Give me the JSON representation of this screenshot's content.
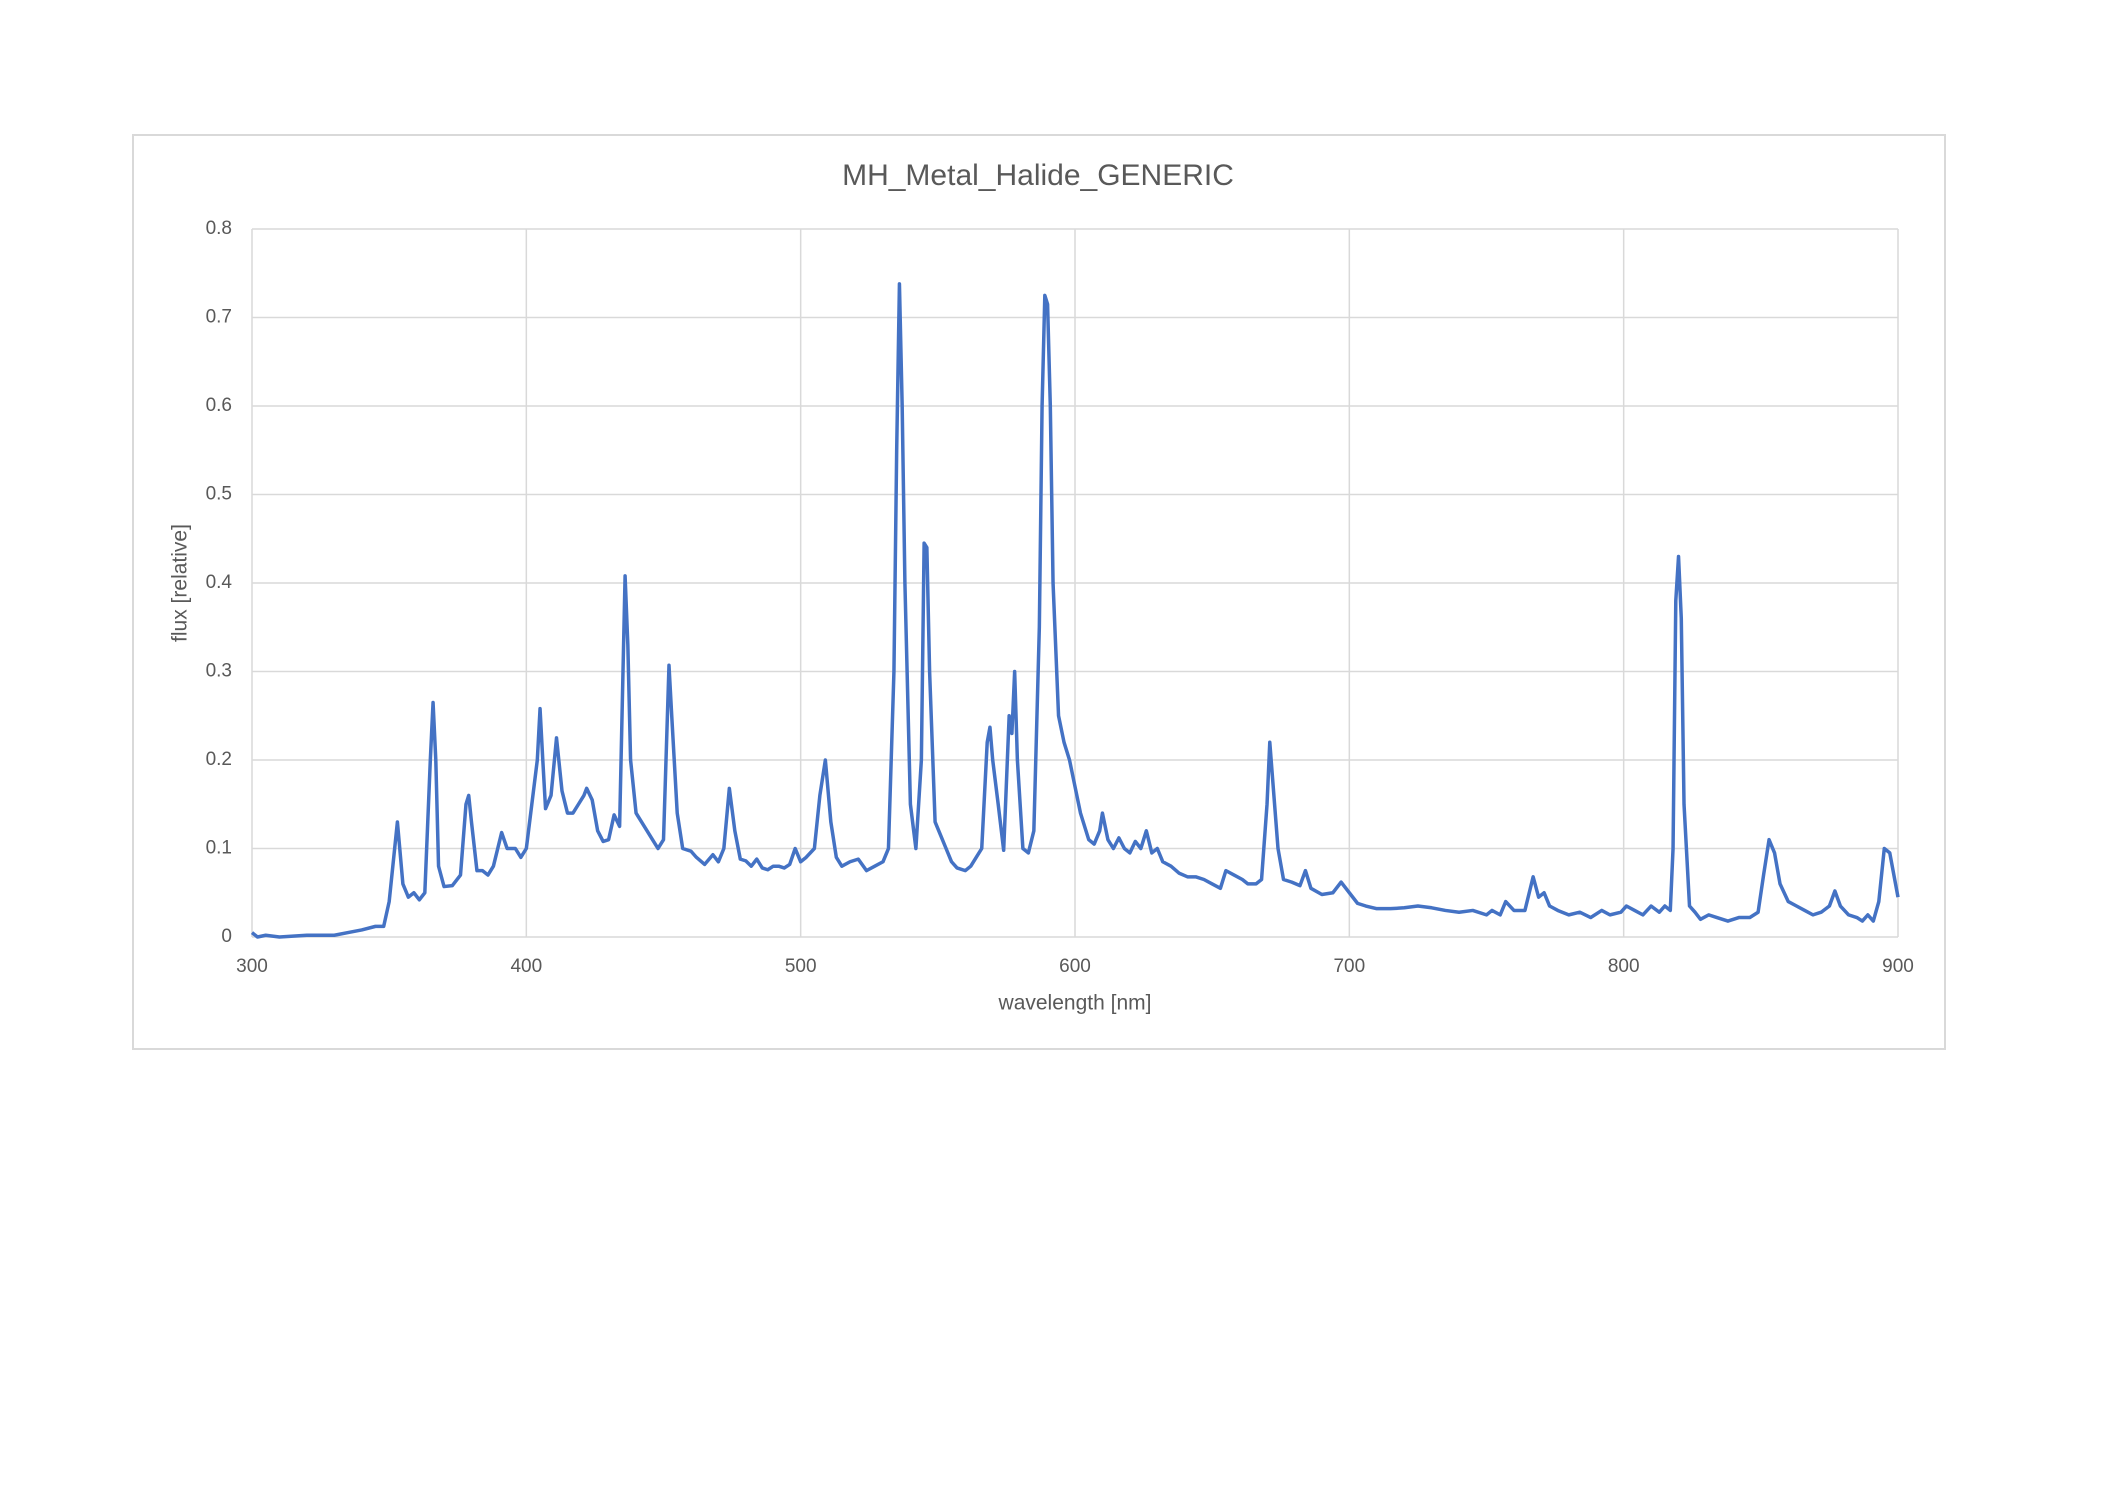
{
  "chart_data": {
    "type": "line",
    "title": "MH_Metal_Halide_GENERIC",
    "x_label": "wavelength [nm]",
    "y_label": "flux [relative]",
    "color": "#4472c4",
    "grid": true,
    "xlim": [
      300,
      900
    ],
    "xticks": [
      300,
      400,
      500,
      600,
      700,
      800,
      900
    ],
    "ylim": [
      0,
      0.8
    ],
    "yticks": [
      0,
      0.1,
      0.2,
      0.3,
      0.4,
      0.5,
      0.6,
      0.7,
      0.8
    ],
    "x": [
      300,
      302,
      305,
      310,
      320,
      330,
      335,
      340,
      345,
      348,
      350,
      353,
      355,
      357,
      359,
      361,
      363,
      365,
      366,
      367,
      368,
      370,
      373,
      376,
      378,
      379,
      380,
      382,
      384,
      386,
      388,
      391,
      393,
      396,
      398,
      400,
      402,
      404,
      405,
      406,
      407,
      409,
      411,
      413,
      415,
      417,
      419,
      421,
      422,
      424,
      426,
      428,
      430,
      432,
      434,
      436,
      437,
      438,
      440,
      442,
      444,
      446,
      448,
      450,
      452,
      453,
      455,
      457,
      460,
      462,
      465,
      468,
      470,
      472,
      474,
      476,
      478,
      480,
      482,
      484,
      486,
      488,
      490,
      492,
      494,
      496,
      498,
      500,
      502,
      505,
      507,
      509,
      511,
      513,
      515,
      518,
      521,
      524,
      527,
      530,
      532,
      534,
      535,
      536,
      537,
      538,
      540,
      542,
      544,
      545,
      546,
      547,
      549,
      551,
      553,
      555,
      557,
      560,
      562,
      564,
      566,
      568,
      569,
      570,
      572,
      574,
      576,
      577,
      578,
      579,
      581,
      583,
      585,
      587,
      588,
      589,
      590,
      591,
      592,
      594,
      596,
      598,
      600,
      602,
      605,
      607,
      609,
      610,
      612,
      614,
      616,
      618,
      620,
      622,
      624,
      626,
      628,
      630,
      632,
      635,
      638,
      641,
      644,
      647,
      650,
      653,
      655,
      658,
      661,
      663,
      666,
      668,
      670,
      671,
      672,
      674,
      676,
      679,
      682,
      684,
      686,
      690,
      694,
      697,
      700,
      703,
      706,
      710,
      715,
      720,
      725,
      730,
      735,
      740,
      745,
      750,
      752,
      755,
      757,
      760,
      764,
      767,
      769,
      771,
      773,
      776,
      780,
      784,
      788,
      792,
      795,
      799,
      801,
      804,
      807,
      810,
      813,
      815,
      817,
      818,
      819,
      820,
      821,
      822,
      824,
      826,
      828,
      831,
      834,
      838,
      842,
      846,
      849,
      851,
      853,
      855,
      857,
      860,
      863,
      866,
      869,
      872,
      875,
      877,
      879,
      882,
      885,
      887,
      889,
      891,
      893,
      895,
      897,
      900
    ],
    "values": [
      0.005,
      0,
      0.002,
      0,
      0.002,
      0.002,
      0.005,
      0.008,
      0.012,
      0.012,
      0.04,
      0.13,
      0.06,
      0.045,
      0.05,
      0.042,
      0.05,
      0.2,
      0.265,
      0.2,
      0.08,
      0.057,
      0.058,
      0.07,
      0.15,
      0.16,
      0.13,
      0.075,
      0.075,
      0.07,
      0.08,
      0.118,
      0.1,
      0.1,
      0.09,
      0.1,
      0.15,
      0.2,
      0.258,
      0.2,
      0.145,
      0.16,
      0.225,
      0.165,
      0.14,
      0.14,
      0.15,
      0.16,
      0.168,
      0.155,
      0.12,
      0.108,
      0.11,
      0.138,
      0.125,
      0.408,
      0.33,
      0.2,
      0.14,
      0.13,
      0.12,
      0.11,
      0.1,
      0.11,
      0.307,
      0.25,
      0.14,
      0.1,
      0.097,
      0.09,
      0.082,
      0.093,
      0.085,
      0.1,
      0.168,
      0.12,
      0.088,
      0.086,
      0.08,
      0.088,
      0.078,
      0.076,
      0.08,
      0.08,
      0.078,
      0.082,
      0.1,
      0.085,
      0.09,
      0.1,
      0.16,
      0.2,
      0.13,
      0.09,
      0.08,
      0.085,
      0.088,
      0.075,
      0.08,
      0.085,
      0.1,
      0.3,
      0.55,
      0.738,
      0.6,
      0.4,
      0.15,
      0.1,
      0.2,
      0.445,
      0.44,
      0.3,
      0.13,
      0.115,
      0.1,
      0.085,
      0.078,
      0.075,
      0.08,
      0.09,
      0.1,
      0.22,
      0.237,
      0.2,
      0.15,
      0.098,
      0.25,
      0.23,
      0.3,
      0.2,
      0.1,
      0.095,
      0.12,
      0.35,
      0.6,
      0.725,
      0.715,
      0.6,
      0.4,
      0.25,
      0.22,
      0.2,
      0.17,
      0.14,
      0.11,
      0.105,
      0.12,
      0.14,
      0.11,
      0.1,
      0.112,
      0.1,
      0.095,
      0.108,
      0.1,
      0.12,
      0.095,
      0.1,
      0.085,
      0.08,
      0.072,
      0.068,
      0.068,
      0.065,
      0.06,
      0.055,
      0.075,
      0.07,
      0.065,
      0.06,
      0.06,
      0.065,
      0.15,
      0.22,
      0.18,
      0.1,
      0.065,
      0.062,
      0.058,
      0.075,
      0.055,
      0.048,
      0.05,
      0.062,
      0.05,
      0.038,
      0.035,
      0.032,
      0.032,
      0.033,
      0.035,
      0.033,
      0.03,
      0.028,
      0.03,
      0.025,
      0.03,
      0.025,
      0.04,
      0.03,
      0.03,
      0.068,
      0.045,
      0.05,
      0.035,
      0.03,
      0.025,
      0.028,
      0.022,
      0.03,
      0.025,
      0.028,
      0.035,
      0.03,
      0.025,
      0.035,
      0.028,
      0.035,
      0.03,
      0.1,
      0.38,
      0.43,
      0.36,
      0.15,
      0.035,
      0.028,
      0.02,
      0.025,
      0.022,
      0.018,
      0.022,
      0.022,
      0.028,
      0.07,
      0.11,
      0.095,
      0.06,
      0.04,
      0.035,
      0.03,
      0.025,
      0.028,
      0.035,
      0.052,
      0.035,
      0.025,
      0.022,
      0.018,
      0.025,
      0.018,
      0.04,
      0.1,
      0.095,
      0.045
    ]
  }
}
